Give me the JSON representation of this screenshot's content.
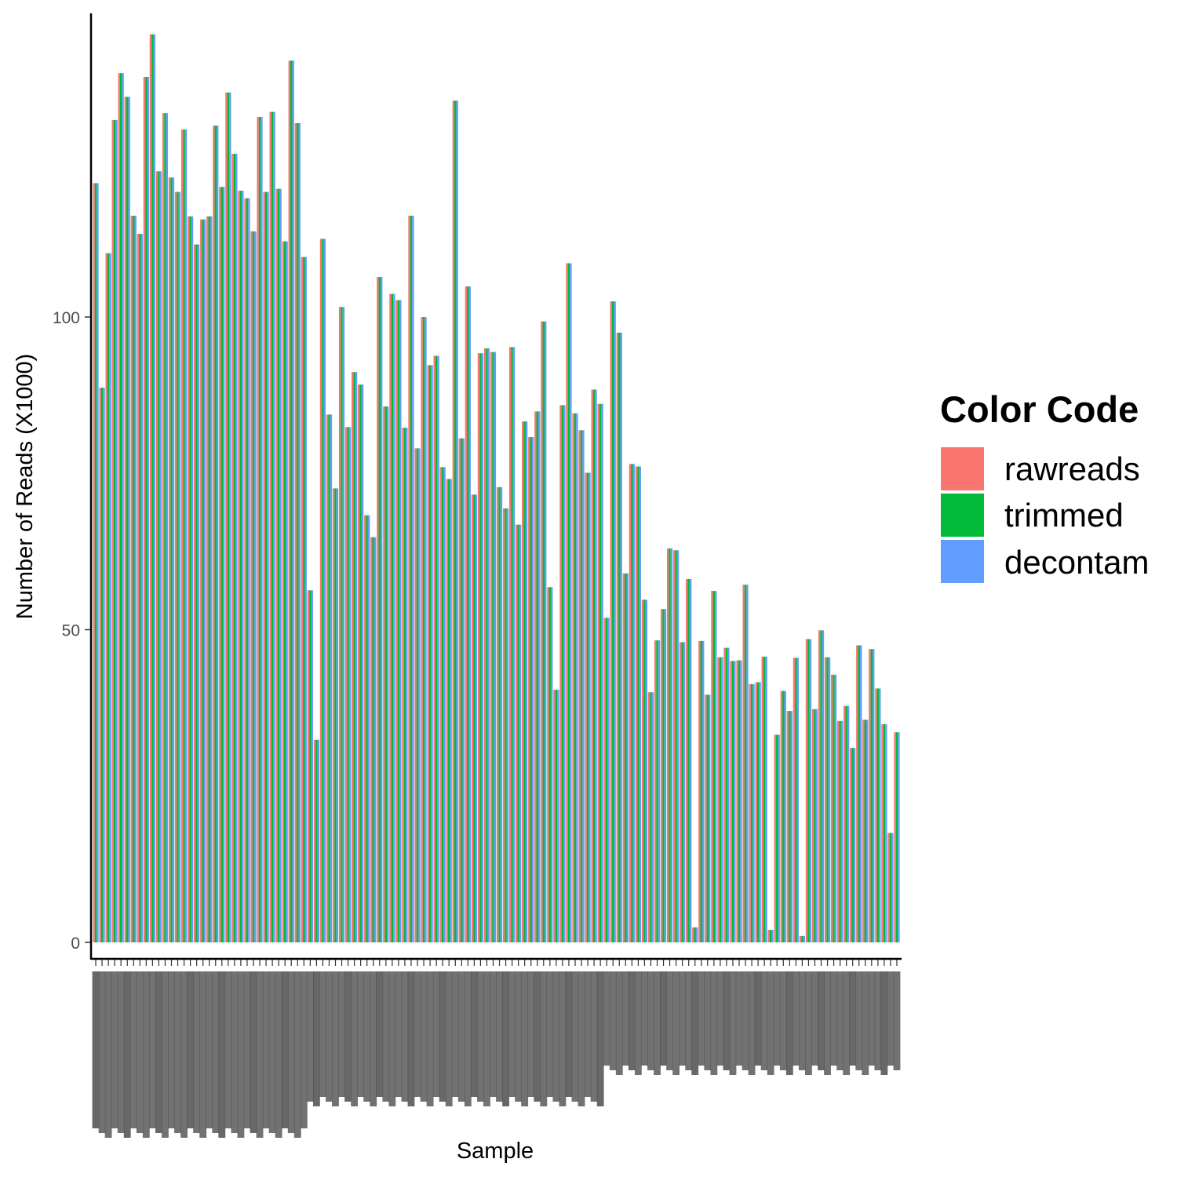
{
  "chart_data": {
    "type": "bar",
    "title": "",
    "xlabel": "Sample",
    "ylabel": "Number of Reads (X1000)",
    "ylim": [
      0,
      147
    ],
    "y_ticks": [
      0,
      50,
      100
    ],
    "y_tick_labels": [
      "0",
      "50",
      "100"
    ],
    "grid": false,
    "legend": {
      "title": "Color Code",
      "position": "right"
    },
    "series": [
      {
        "name": "rawreads",
        "color": "#F8766D"
      },
      {
        "name": "trimmed",
        "color": "#00BA38"
      },
      {
        "name": "decontam",
        "color": "#619CFF"
      }
    ],
    "values": [
      121.4,
      88.7,
      110.2,
      131.5,
      139.0,
      135.2,
      116.2,
      113.3,
      138.4,
      145.2,
      123.3,
      132.6,
      122.3,
      120.0,
      130.0,
      116.1,
      111.6,
      115.6,
      116.1,
      130.6,
      120.8,
      135.9,
      126.1,
      120.2,
      119.0,
      113.7,
      132.0,
      120.0,
      132.8,
      120.5,
      112.1,
      141.0,
      131.0,
      109.6,
      56.3,
      32.4,
      112.5,
      84.4,
      72.6,
      101.6,
      82.4,
      91.2,
      89.2,
      68.3,
      64.8,
      106.4,
      85.7,
      103.7,
      102.7,
      82.3,
      116.2,
      79.0,
      100.0,
      92.3,
      93.8,
      76.0,
      74.1,
      134.6,
      80.6,
      104.9,
      71.6,
      94.2,
      95.0,
      94.4,
      72.8,
      69.4,
      95.2,
      66.8,
      83.3,
      80.8,
      84.9,
      99.3,
      56.8,
      40.4,
      85.9,
      108.6,
      84.6,
      81.9,
      75.1,
      88.4,
      86.1,
      51.9,
      102.5,
      97.5,
      59.0,
      76.5,
      76.1,
      54.8,
      40.0,
      48.3,
      53.3,
      63.0,
      62.7,
      48.0,
      58.1,
      2.4,
      48.2,
      39.6,
      56.2,
      45.6,
      47.1,
      45.0,
      45.1,
      57.2,
      41.3,
      41.6,
      45.7,
      2.0,
      33.2,
      40.2,
      37.0,
      45.5,
      1.0,
      48.5,
      37.3,
      49.9,
      45.6,
      42.8,
      35.4,
      37.8,
      31.1,
      47.5,
      35.6,
      46.9,
      40.6,
      34.9,
      17.5,
      33.6
    ],
    "x_labels_note": "sample names along the x axis are rendered rotated and overlapping and are not legible"
  }
}
